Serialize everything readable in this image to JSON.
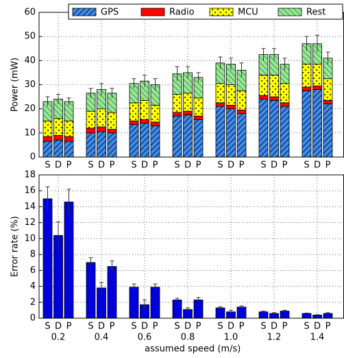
{
  "chart_data": [
    {
      "type": "stacked_bar",
      "ylabel": "Power (mW)",
      "categories": [
        "S",
        "D",
        "P",
        "S",
        "D",
        "P",
        "S",
        "D",
        "P",
        "S",
        "D",
        "P",
        "S",
        "D",
        "P",
        "S",
        "D",
        "P",
        "S",
        "D",
        "P"
      ],
      "ylim": [
        0,
        60
      ],
      "yticks": [
        0,
        10,
        20,
        30,
        40,
        50,
        60
      ],
      "grid": true,
      "legend": "top",
      "series": [
        {
          "name": "GPS",
          "color": "#3d8bef",
          "hatch": "/",
          "values": [
            6.5,
            7,
            6.5,
            10,
            10.5,
            10,
            13.5,
            14,
            13,
            17,
            17.5,
            15.5,
            21,
            20,
            18,
            24,
            23.5,
            21,
            27.5,
            28,
            22
          ]
        },
        {
          "name": "Radio",
          "color": "#ff0000",
          "values": [
            2,
            2,
            2,
            2,
            2,
            1.5,
            1.5,
            1.5,
            1.5,
            1.5,
            1.5,
            1.5,
            1.5,
            1.5,
            1.5,
            1.5,
            1.5,
            1.5,
            1.5,
            1.5,
            1.5
          ]
        },
        {
          "name": "MCU",
          "color": "#ffff00",
          "hatch": ".",
          "values": [
            6.5,
            7,
            6.5,
            7,
            7.5,
            7,
            7.5,
            8,
            7,
            7.5,
            7.5,
            7.5,
            8,
            8.5,
            8,
            8.5,
            9,
            8,
            9.5,
            9,
            9
          ]
        },
        {
          "name": "Rest",
          "color": "#99e699",
          "hatch": "\\",
          "values": [
            8,
            8,
            8,
            7.5,
            8,
            8,
            8,
            8,
            8.5,
            8.5,
            8.5,
            8.5,
            8.5,
            8.5,
            8.5,
            8.5,
            8.5,
            8,
            8.5,
            8.5,
            8.5
          ]
        }
      ],
      "errors": [
        2,
        2,
        1.5,
        2,
        2.5,
        2,
        2,
        2.5,
        2.5,
        3,
        2.5,
        2,
        2.5,
        2.5,
        3,
        2.5,
        2.5,
        2.5,
        3,
        3.5,
        2.5
      ]
    },
    {
      "type": "bar",
      "ylabel": "Error rate (%)",
      "xlabel": "assumed speed (m/s)",
      "categories": [
        "S",
        "D",
        "P",
        "S",
        "D",
        "P",
        "S",
        "D",
        "P",
        "S",
        "D",
        "P",
        "S",
        "D",
        "P",
        "S",
        "D",
        "P",
        "S",
        "D",
        "P"
      ],
      "groups": [
        "0.2",
        "0.4",
        "0.6",
        "0.8",
        "1.0",
        "1.2",
        "1.4"
      ],
      "ylim": [
        0,
        18
      ],
      "yticks": [
        0,
        2,
        4,
        6,
        8,
        10,
        12,
        14,
        16,
        18
      ],
      "grid": true,
      "color": "#0000dd",
      "values": [
        15,
        10.4,
        14.6,
        7,
        3.8,
        6.5,
        3.9,
        1.7,
        3.9,
        2.3,
        1.1,
        2.3,
        1.3,
        0.8,
        1.4,
        0.8,
        0.6,
        0.9,
        0.6,
        0.4,
        0.6
      ],
      "errors": [
        1.5,
        1.7,
        1.6,
        0.6,
        0.7,
        0.7,
        0.4,
        0.6,
        0.4,
        0.2,
        0.2,
        0.3,
        0.15,
        0.2,
        0.15,
        0.1,
        0.1,
        0.1,
        0.05,
        0.05,
        0.1
      ]
    }
  ]
}
